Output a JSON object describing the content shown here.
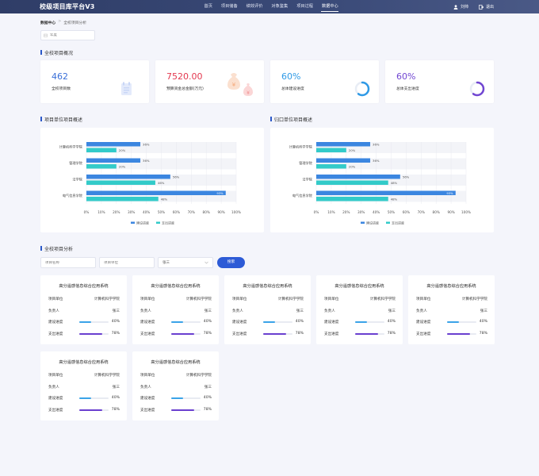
{
  "header": {
    "logo": "校级项目库平台V3",
    "nav": [
      "首页",
      "项目储备",
      "绩效评价",
      "对象鉴集",
      "项目过程",
      "数据中心"
    ],
    "active_nav": 5,
    "user": "刘帅",
    "logout": "退出"
  },
  "breadcrumb": {
    "home": "数据中心",
    "current": "全校项目分析"
  },
  "search": {
    "placeholder": "年度"
  },
  "overview": {
    "title": "全校项目概况",
    "cards": [
      {
        "value": "462",
        "label": "全校项目数",
        "color": "#3a6fd8",
        "icon": "calendar-icon"
      },
      {
        "value": "7520.00",
        "label": "预算资金总金额(万元)",
        "color": "#e3384f",
        "icon": "money-bag-icon"
      },
      {
        "value": "60%",
        "label": "总体建设进度",
        "color": "#2f9ae6",
        "icon": "ring-progress-icon",
        "progress": 0.6
      },
      {
        "value": "60%",
        "label": "总体支出进度",
        "color": "#7146d2",
        "icon": "ring-progress-icon",
        "progress": 0.6
      }
    ]
  },
  "chart_titles": {
    "left": "项目单位项目概述",
    "right": "归口单位项目概述"
  },
  "chart_data": [
    {
      "type": "bar",
      "orientation": "horizontal",
      "categories": [
        "计算机科学学院",
        "管理学院",
        "法学院",
        "电气信息学院"
      ],
      "series": [
        {
          "name": "建设进度",
          "values": [
            36,
            36,
            56,
            93
          ],
          "color": "#3b86e0"
        },
        {
          "name": "支出进度",
          "values": [
            20,
            20,
            46,
            48
          ],
          "color": "#33cbc9"
        }
      ],
      "xticks": [
        "0%",
        "10%",
        "20%",
        "30%",
        "40%",
        "50%",
        "60%",
        "70%",
        "80%",
        "90%",
        "100%"
      ],
      "xlim": [
        0,
        100
      ],
      "legend": "bottom-center"
    },
    {
      "type": "bar",
      "orientation": "horizontal",
      "categories": [
        "计算机科学学院",
        "管理学院",
        "法学院",
        "电气信息学院"
      ],
      "series": [
        {
          "name": "建设进度",
          "values": [
            36,
            36,
            56,
            93
          ],
          "color": "#3b86e0"
        },
        {
          "name": "支出进度",
          "values": [
            20,
            20,
            48,
            48
          ],
          "color": "#33cbc9"
        }
      ],
      "xticks": [
        "0%",
        "10%",
        "20%",
        "30%",
        "40%",
        "50%",
        "60%",
        "70%",
        "80%",
        "90%",
        "100%"
      ],
      "xlim": [
        0,
        100
      ],
      "legend": "bottom-center"
    }
  ],
  "analysis": {
    "title": "全校项目分析",
    "filters": {
      "project_placeholder": "项目名称",
      "unit_placeholder": "项目单位",
      "owner_value": "张三"
    },
    "search_button": "搜索",
    "row_labels": {
      "unit": "项目单位",
      "owner": "负责人",
      "build": "建设进度",
      "spend": "支出进度"
    },
    "projects": [
      {
        "title": "高分遥感信息综合应用系统",
        "unit": "计算机科学学院",
        "owner": "张三",
        "build": "40%",
        "build_value": 40,
        "spend": "78%",
        "spend_value": 78
      },
      {
        "title": "高分遥感信息综合应用系统",
        "unit": "计算机科学学院",
        "owner": "张三",
        "build": "40%",
        "build_value": 40,
        "spend": "78%",
        "spend_value": 78
      },
      {
        "title": "高分遥感信息综合应用系统",
        "unit": "计算机科学学院",
        "owner": "张三",
        "build": "40%",
        "build_value": 40,
        "spend": "78%",
        "spend_value": 78
      },
      {
        "title": "高分遥感信息综合应用系统",
        "unit": "计算机科学学院",
        "owner": "张三",
        "build": "40%",
        "build_value": 40,
        "spend": "78%",
        "spend_value": 78
      },
      {
        "title": "高分遥感信息综合应用系统",
        "unit": "计算机科学学院",
        "owner": "张三",
        "build": "40%",
        "build_value": 40,
        "spend": "78%",
        "spend_value": 78
      },
      {
        "title": "高分遥感信息综合应用系统",
        "unit": "计算机科学学院",
        "owner": "张三",
        "build": "40%",
        "build_value": 40,
        "spend": "78%",
        "spend_value": 78
      },
      {
        "title": "高分遥感信息综合应用系统",
        "unit": "计算机科学学院",
        "owner": "张三",
        "build": "40%",
        "build_value": 40,
        "spend": "78%",
        "spend_value": 78
      }
    ],
    "colors": {
      "build_bar": "#3aa3e8",
      "spend_bar": "#6a3fcf"
    }
  }
}
